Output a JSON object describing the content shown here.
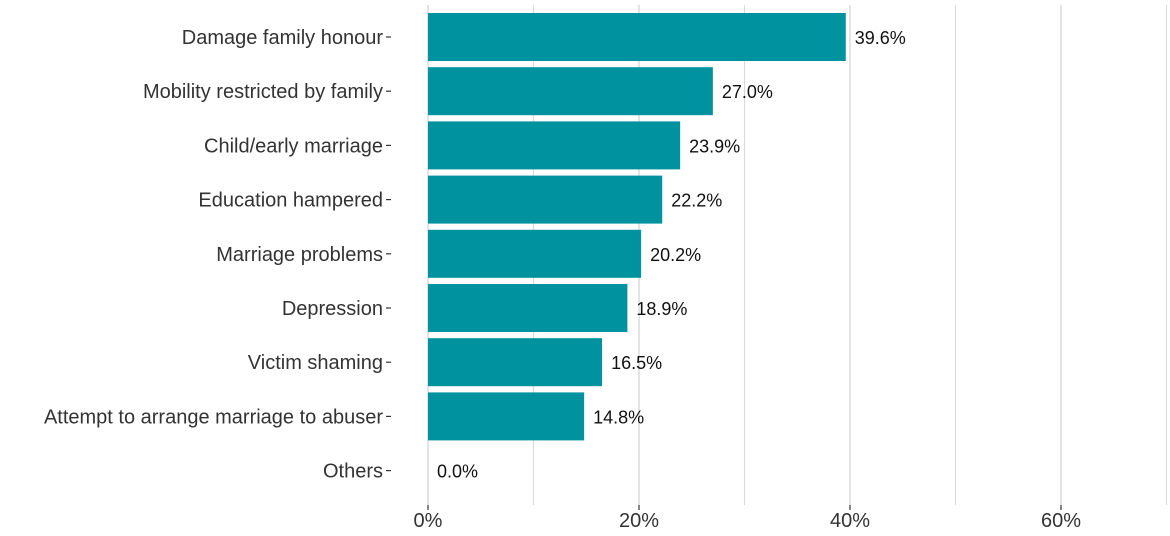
{
  "chart_data": {
    "type": "bar",
    "orientation": "horizontal",
    "title": "",
    "xlabel": "",
    "ylabel": "",
    "categories": [
      "Damage family honour",
      "Mobility restricted by family",
      "Child/early marriage",
      "Education hampered",
      "Marriage problems",
      "Depression",
      "Victim shaming",
      "Attempt to arrange marriage to abuser",
      "Others"
    ],
    "values": [
      39.6,
      27.0,
      23.9,
      22.2,
      20.2,
      18.9,
      16.5,
      14.8,
      0.0
    ],
    "data_labels": [
      "39.6%",
      "27.0%",
      "23.9%",
      "22.2%",
      "20.2%",
      "18.9%",
      "16.5%",
      "14.8%",
      "0.0%"
    ],
    "xlim": [
      0,
      70
    ],
    "x_ticks": [
      0,
      20,
      40,
      60
    ],
    "x_tick_labels": [
      "0%",
      "20%",
      "40%",
      "60%"
    ],
    "grid": true,
    "bar_color": "#00929F"
  }
}
